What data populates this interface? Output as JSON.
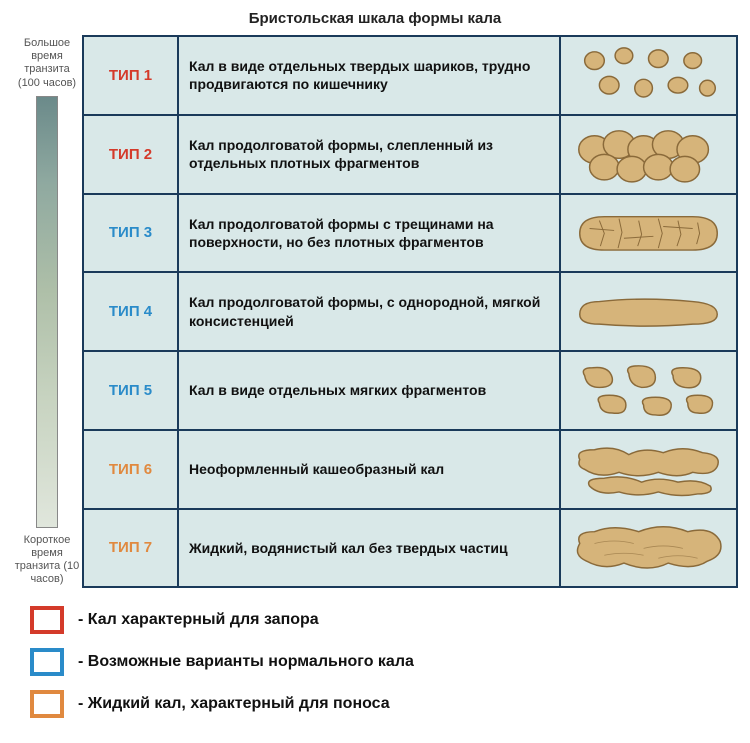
{
  "title": "Бристольская шкала формы кала",
  "scale": {
    "top": "Большое время транзита (100 часов)",
    "bottom": "Короткое время транзита (10 часов)",
    "gradient_top": "#6b8a8a",
    "gradient_bottom": "#e0e6dc"
  },
  "type_colors": {
    "red": "#d43a2a",
    "blue": "#2a8bc9",
    "orange": "#e0893f"
  },
  "rows": [
    {
      "label": "ТИП 1",
      "color": "#d43a2a",
      "desc": "Кал в виде отдельных твердых шариков, трудно продвигаются по кишечнику",
      "shape": "pellets"
    },
    {
      "label": "ТИП 2",
      "color": "#d43a2a",
      "desc": "Кал продолговатой формы, слепленный из отдельных плотных фрагментов",
      "shape": "lumpy"
    },
    {
      "label": "ТИП 3",
      "color": "#2a8bc9",
      "desc": "Кал продолговатой формы с трещинами на поверхности, но без плотных фрагментов",
      "shape": "cracked"
    },
    {
      "label": "ТИП 4",
      "color": "#2a8bc9",
      "desc": "Кал продолговатой формы, с однородной, мягкой консистенцией",
      "shape": "smooth"
    },
    {
      "label": "ТИП 5",
      "color": "#2a8bc9",
      "desc": "Кал в виде отдельных мягких фрагментов",
      "shape": "blobs"
    },
    {
      "label": "ТИП 6",
      "color": "#e0893f",
      "desc": "Неоформленный кашеобразный кал",
      "shape": "mushy"
    },
    {
      "label": "ТИП 7",
      "color": "#e0893f",
      "desc": "Жидкий, водянистый кал без твердых частиц",
      "shape": "liquid"
    }
  ],
  "legend": [
    {
      "color": "#d43a2a",
      "text": "- Кал характерный для запора"
    },
    {
      "color": "#2a8bc9",
      "text": "- Возможные варианты нормального кала"
    },
    {
      "color": "#e0893f",
      "text": "- Жидкий кал, характерный для поноса"
    }
  ],
  "shape_fill": "#d6b47a",
  "shape_stroke": "#8a6a3a",
  "table_border": "#1a3a5a",
  "row_bg": "#d9e8e8"
}
